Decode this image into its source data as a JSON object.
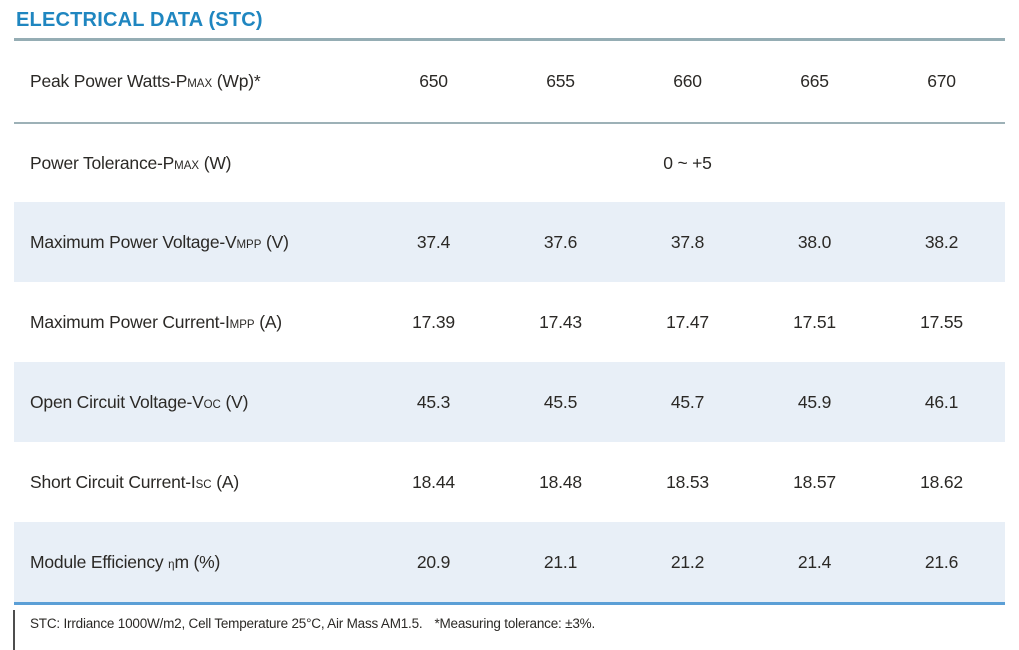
{
  "header": {
    "title": "ELECTRICAL DATA (STC)",
    "accent_color": "#1f86c0"
  },
  "table": {
    "row_highlight_color": "#e8eff7",
    "divider_gray": "#95adb4",
    "divider_blue": "#5b9fd6",
    "rows": [
      {
        "label_main": "Peak Power Watts-P",
        "label_sub": "MAX",
        "label_suffix": " (Wp)*",
        "values": [
          "650",
          "655",
          "660",
          "665",
          "670"
        ]
      },
      {
        "label_main": "Power Tolerance-P",
        "label_sub": "MAX",
        "label_suffix": " (W)",
        "span_value": "0 ~ +5"
      },
      {
        "label_main": "Maximum Power Voltage-V",
        "label_sub": "MPP",
        "label_suffix": " (V)",
        "values": [
          "37.4",
          "37.6",
          "37.8",
          "38.0",
          "38.2"
        ]
      },
      {
        "label_main": "Maximum Power Current-I",
        "label_sub": "MPP",
        "label_suffix": " (A)",
        "values": [
          "17.39",
          "17.43",
          "17.47",
          "17.51",
          "17.55"
        ]
      },
      {
        "label_main": "Open Circuit Voltage-V",
        "label_sub": "OC",
        "label_suffix": " (V)",
        "values": [
          "45.3",
          "45.5",
          "45.7",
          "45.9",
          "46.1"
        ]
      },
      {
        "label_main": "Short Circuit Current-I",
        "label_sub": "SC",
        "label_suffix": " (A)",
        "values": [
          "18.44",
          "18.48",
          "18.53",
          "18.57",
          "18.62"
        ]
      },
      {
        "label_main": "Module Efficiency ",
        "label_sub": "η",
        "label_suffix": "m (%)",
        "values": [
          "20.9",
          "21.1",
          "21.2",
          "21.4",
          "21.6"
        ]
      }
    ]
  },
  "footer": {
    "stc_note": "STC: Irrdiance 1000W/m2, Cell Temperature 25°C, Air Mass AM1.5.",
    "tolerance_note": "*Measuring tolerance: ±3%."
  }
}
